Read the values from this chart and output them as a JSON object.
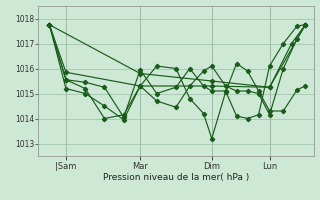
{
  "bg_color": "#cde8d5",
  "line_color": "#1a5c1a",
  "grid_color": "#9dbfaa",
  "xlabel": "Pression niveau de la mer( hPa )",
  "ylim": [
    1012.5,
    1018.5
  ],
  "yticks": [
    1013,
    1014,
    1015,
    1016,
    1017,
    1018
  ],
  "xlim": [
    0.0,
    1.0
  ],
  "xtick_labels": [
    "|Sam",
    "Mar",
    "Dim",
    "Lun"
  ],
  "xtick_positions": [
    0.1,
    0.37,
    0.63,
    0.84
  ],
  "vlines": [
    0.1,
    0.37,
    0.63,
    0.84
  ],
  "series1_x": [
    0.04,
    0.1,
    0.37,
    0.63,
    0.84,
    0.92,
    0.97
  ],
  "series1_y": [
    1017.75,
    1015.85,
    1015.3,
    1015.3,
    1015.25,
    1017.0,
    1017.75
  ],
  "series2_x": [
    0.04,
    0.1,
    0.17,
    0.24,
    0.31,
    0.37,
    0.43,
    0.5,
    0.55,
    0.6,
    0.63,
    0.68,
    0.72,
    0.76,
    0.8,
    0.84,
    0.89,
    0.94,
    0.97
  ],
  "series2_y": [
    1017.75,
    1015.2,
    1015.0,
    1014.5,
    1013.95,
    1015.3,
    1016.1,
    1016.0,
    1014.8,
    1014.2,
    1013.2,
    1015.05,
    1016.2,
    1015.9,
    1015.1,
    1014.3,
    1014.3,
    1015.15,
    1015.3
  ],
  "series3_x": [
    0.04,
    0.1,
    0.17,
    0.24,
    0.31,
    0.37,
    0.43,
    0.5,
    0.55,
    0.6,
    0.63,
    0.68,
    0.72,
    0.76,
    0.8,
    0.84,
    0.89,
    0.94,
    0.97
  ],
  "series3_y": [
    1017.75,
    1015.55,
    1015.2,
    1014.0,
    1014.15,
    1015.3,
    1014.7,
    1014.45,
    1015.3,
    1015.9,
    1016.1,
    1015.3,
    1015.1,
    1015.1,
    1015.0,
    1014.15,
    1016.0,
    1017.2,
    1017.75
  ],
  "series4_x": [
    0.04,
    0.1,
    0.17,
    0.24,
    0.31,
    0.37,
    0.43,
    0.5,
    0.55,
    0.6,
    0.63,
    0.68,
    0.72,
    0.76,
    0.8,
    0.84,
    0.89,
    0.94,
    0.97
  ],
  "series4_y": [
    1017.75,
    1015.55,
    1015.45,
    1015.25,
    1014.05,
    1015.95,
    1015.0,
    1015.25,
    1016.0,
    1015.3,
    1015.1,
    1015.1,
    1014.1,
    1014.0,
    1014.15,
    1016.1,
    1017.0,
    1017.7,
    1017.75
  ],
  "series5_x": [
    0.04,
    0.37,
    0.63,
    0.84,
    0.97
  ],
  "series5_y": [
    1017.75,
    1015.8,
    1015.5,
    1015.25,
    1017.75
  ]
}
